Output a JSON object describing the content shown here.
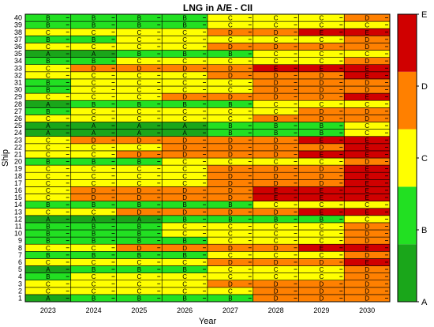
{
  "chart_data": {
    "type": "heatmap",
    "title": "LNG in A/E - CII",
    "xlabel": "Year",
    "ylabel": "Ship",
    "x": [
      "2023",
      "2024",
      "2025",
      "2026",
      "2027",
      "2028",
      "2029",
      "2030"
    ],
    "y_ticks": [
      "1",
      "2",
      "3",
      "4",
      "5",
      "6",
      "7",
      "8",
      "9",
      "10",
      "11",
      "12",
      "13",
      "14",
      "15",
      "16",
      "17",
      "18",
      "19",
      "20",
      "21",
      "22",
      "23",
      "24",
      "25",
      "26",
      "27",
      "28",
      "29",
      "30",
      "31",
      "32",
      "33",
      "34",
      "35",
      "36",
      "37",
      "38",
      "39",
      "40"
    ],
    "grades": {
      "1": [
        "A",
        "B",
        "B",
        "B",
        "B",
        "D",
        "D",
        "D"
      ],
      "2": [
        "C",
        "C",
        "C",
        "C",
        "C",
        "D",
        "D",
        "D"
      ],
      "3": [
        "C",
        "C",
        "C",
        "C",
        "D",
        "D",
        "D",
        "D"
      ],
      "4": [
        "B",
        "C",
        "C",
        "C",
        "C",
        "C",
        "C",
        "D"
      ],
      "5": [
        "A",
        "B",
        "B",
        "B",
        "C",
        "C",
        "C",
        "D"
      ],
      "6": [
        "C",
        "C",
        "C",
        "C",
        "D",
        "D",
        "D",
        "E"
      ],
      "7": [
        "B",
        "B",
        "B",
        "B",
        "C",
        "C",
        "C",
        "D"
      ],
      "8": [
        "C",
        "C",
        "D",
        "D",
        "D",
        "D",
        "E",
        "E"
      ],
      "9": [
        "B",
        "B",
        "B",
        "B",
        "C",
        "C",
        "C",
        "D"
      ],
      "10": [
        "B",
        "B",
        "B",
        "C",
        "C",
        "C",
        "C",
        "D"
      ],
      "11": [
        "B",
        "B",
        "B",
        "C",
        "C",
        "C",
        "C",
        "D"
      ],
      "12": [
        "A",
        "A",
        "A",
        "B",
        "B",
        "B",
        "B",
        "C"
      ],
      "13": [
        "C",
        "C",
        "D",
        "D",
        "D",
        "D",
        "E",
        "E"
      ],
      "14": [
        "B",
        "B",
        "B",
        "B",
        "B",
        "C",
        "C",
        "C"
      ],
      "15": [
        "C",
        "D",
        "D",
        "D",
        "D",
        "E",
        "E",
        "E"
      ],
      "16": [
        "C",
        "D",
        "D",
        "D",
        "D",
        "E",
        "E",
        "E"
      ],
      "17": [
        "C",
        "C",
        "C",
        "C",
        "D",
        "D",
        "D",
        "E"
      ],
      "18": [
        "C",
        "C",
        "C",
        "C",
        "D",
        "D",
        "D",
        "E"
      ],
      "19": [
        "C",
        "C",
        "C",
        "C",
        "D",
        "D",
        "D",
        "E"
      ],
      "20": [
        "B",
        "B",
        "B",
        "C",
        "C",
        "C",
        "C",
        "D"
      ],
      "21": [
        "C",
        "C",
        "D",
        "D",
        "D",
        "D",
        "E",
        "E"
      ],
      "22": [
        "C",
        "C",
        "C",
        "D",
        "D",
        "D",
        "D",
        "E"
      ],
      "23": [
        "C",
        "D",
        "D",
        "D",
        "D",
        "D",
        "E",
        "E"
      ],
      "24": [
        "A",
        "A",
        "A",
        "A",
        "B",
        "B",
        "B",
        "C"
      ],
      "25": [
        "A",
        "A",
        "A",
        "A",
        "B",
        "B",
        "B",
        "C"
      ],
      "26": [
        "C",
        "C",
        "C",
        "C",
        "C",
        "D",
        "D",
        "D"
      ],
      "27": [
        "B",
        "C",
        "C",
        "C",
        "C",
        "C",
        "D",
        "D"
      ],
      "28": [
        "A",
        "B",
        "B",
        "B",
        "B",
        "C",
        "C",
        "C"
      ],
      "29": [
        "C",
        "C",
        "C",
        "D",
        "D",
        "D",
        "D",
        "E"
      ],
      "30": [
        "B",
        "C",
        "C",
        "C",
        "C",
        "D",
        "D",
        "D"
      ],
      "31": [
        "B",
        "C",
        "C",
        "C",
        "C",
        "D",
        "D",
        "D"
      ],
      "32": [
        "C",
        "C",
        "C",
        "C",
        "D",
        "D",
        "D",
        "E"
      ],
      "33": [
        "C",
        "D",
        "D",
        "D",
        "D",
        "E",
        "E",
        "E"
      ],
      "34": [
        "B",
        "B",
        "C",
        "C",
        "C",
        "C",
        "C",
        "D"
      ],
      "35": [
        "A",
        "A",
        "B",
        "B",
        "B",
        "C",
        "C",
        "C"
      ],
      "36": [
        "C",
        "C",
        "C",
        "C",
        "D",
        "D",
        "D",
        "D"
      ],
      "37": [
        "B",
        "B",
        "C",
        "C",
        "C",
        "C",
        "C",
        "D"
      ],
      "38": [
        "C",
        "C",
        "C",
        "C",
        "D",
        "D",
        "E",
        "E"
      ],
      "39": [
        "B",
        "B",
        "B",
        "B",
        "C",
        "C",
        "C",
        "C"
      ],
      "40": [
        "B",
        "B",
        "B",
        "B",
        "C",
        "C",
        "C",
        "D"
      ]
    },
    "colorbar": {
      "labels": [
        "A",
        "B",
        "C",
        "D",
        "E"
      ],
      "colors": {
        "A": "#1aa61a",
        "B": "#22e022",
        "C": "#ffff00",
        "D": "#ff8000",
        "E": "#d00000"
      },
      "position": "right"
    },
    "grid": true
  }
}
